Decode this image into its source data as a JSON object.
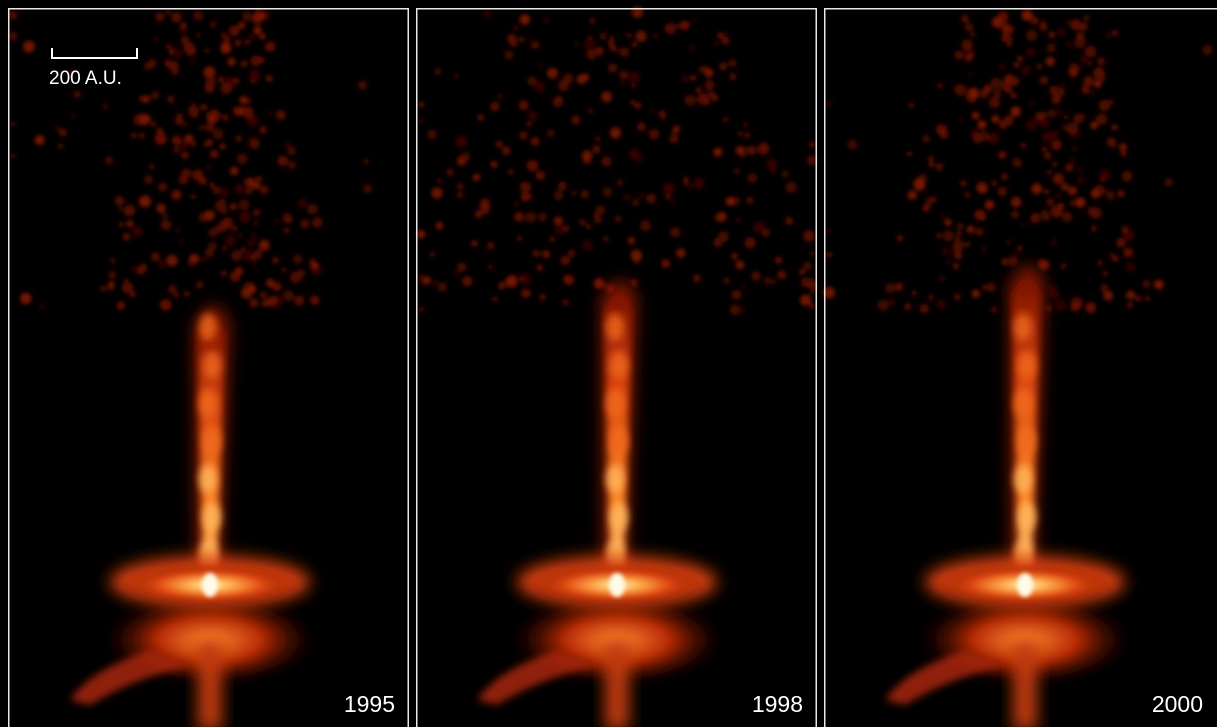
{
  "scale_bar": {
    "label": "200 A.U."
  },
  "panels": [
    {
      "year": "1995"
    },
    {
      "year": "1998"
    },
    {
      "year": "2000"
    }
  ]
}
